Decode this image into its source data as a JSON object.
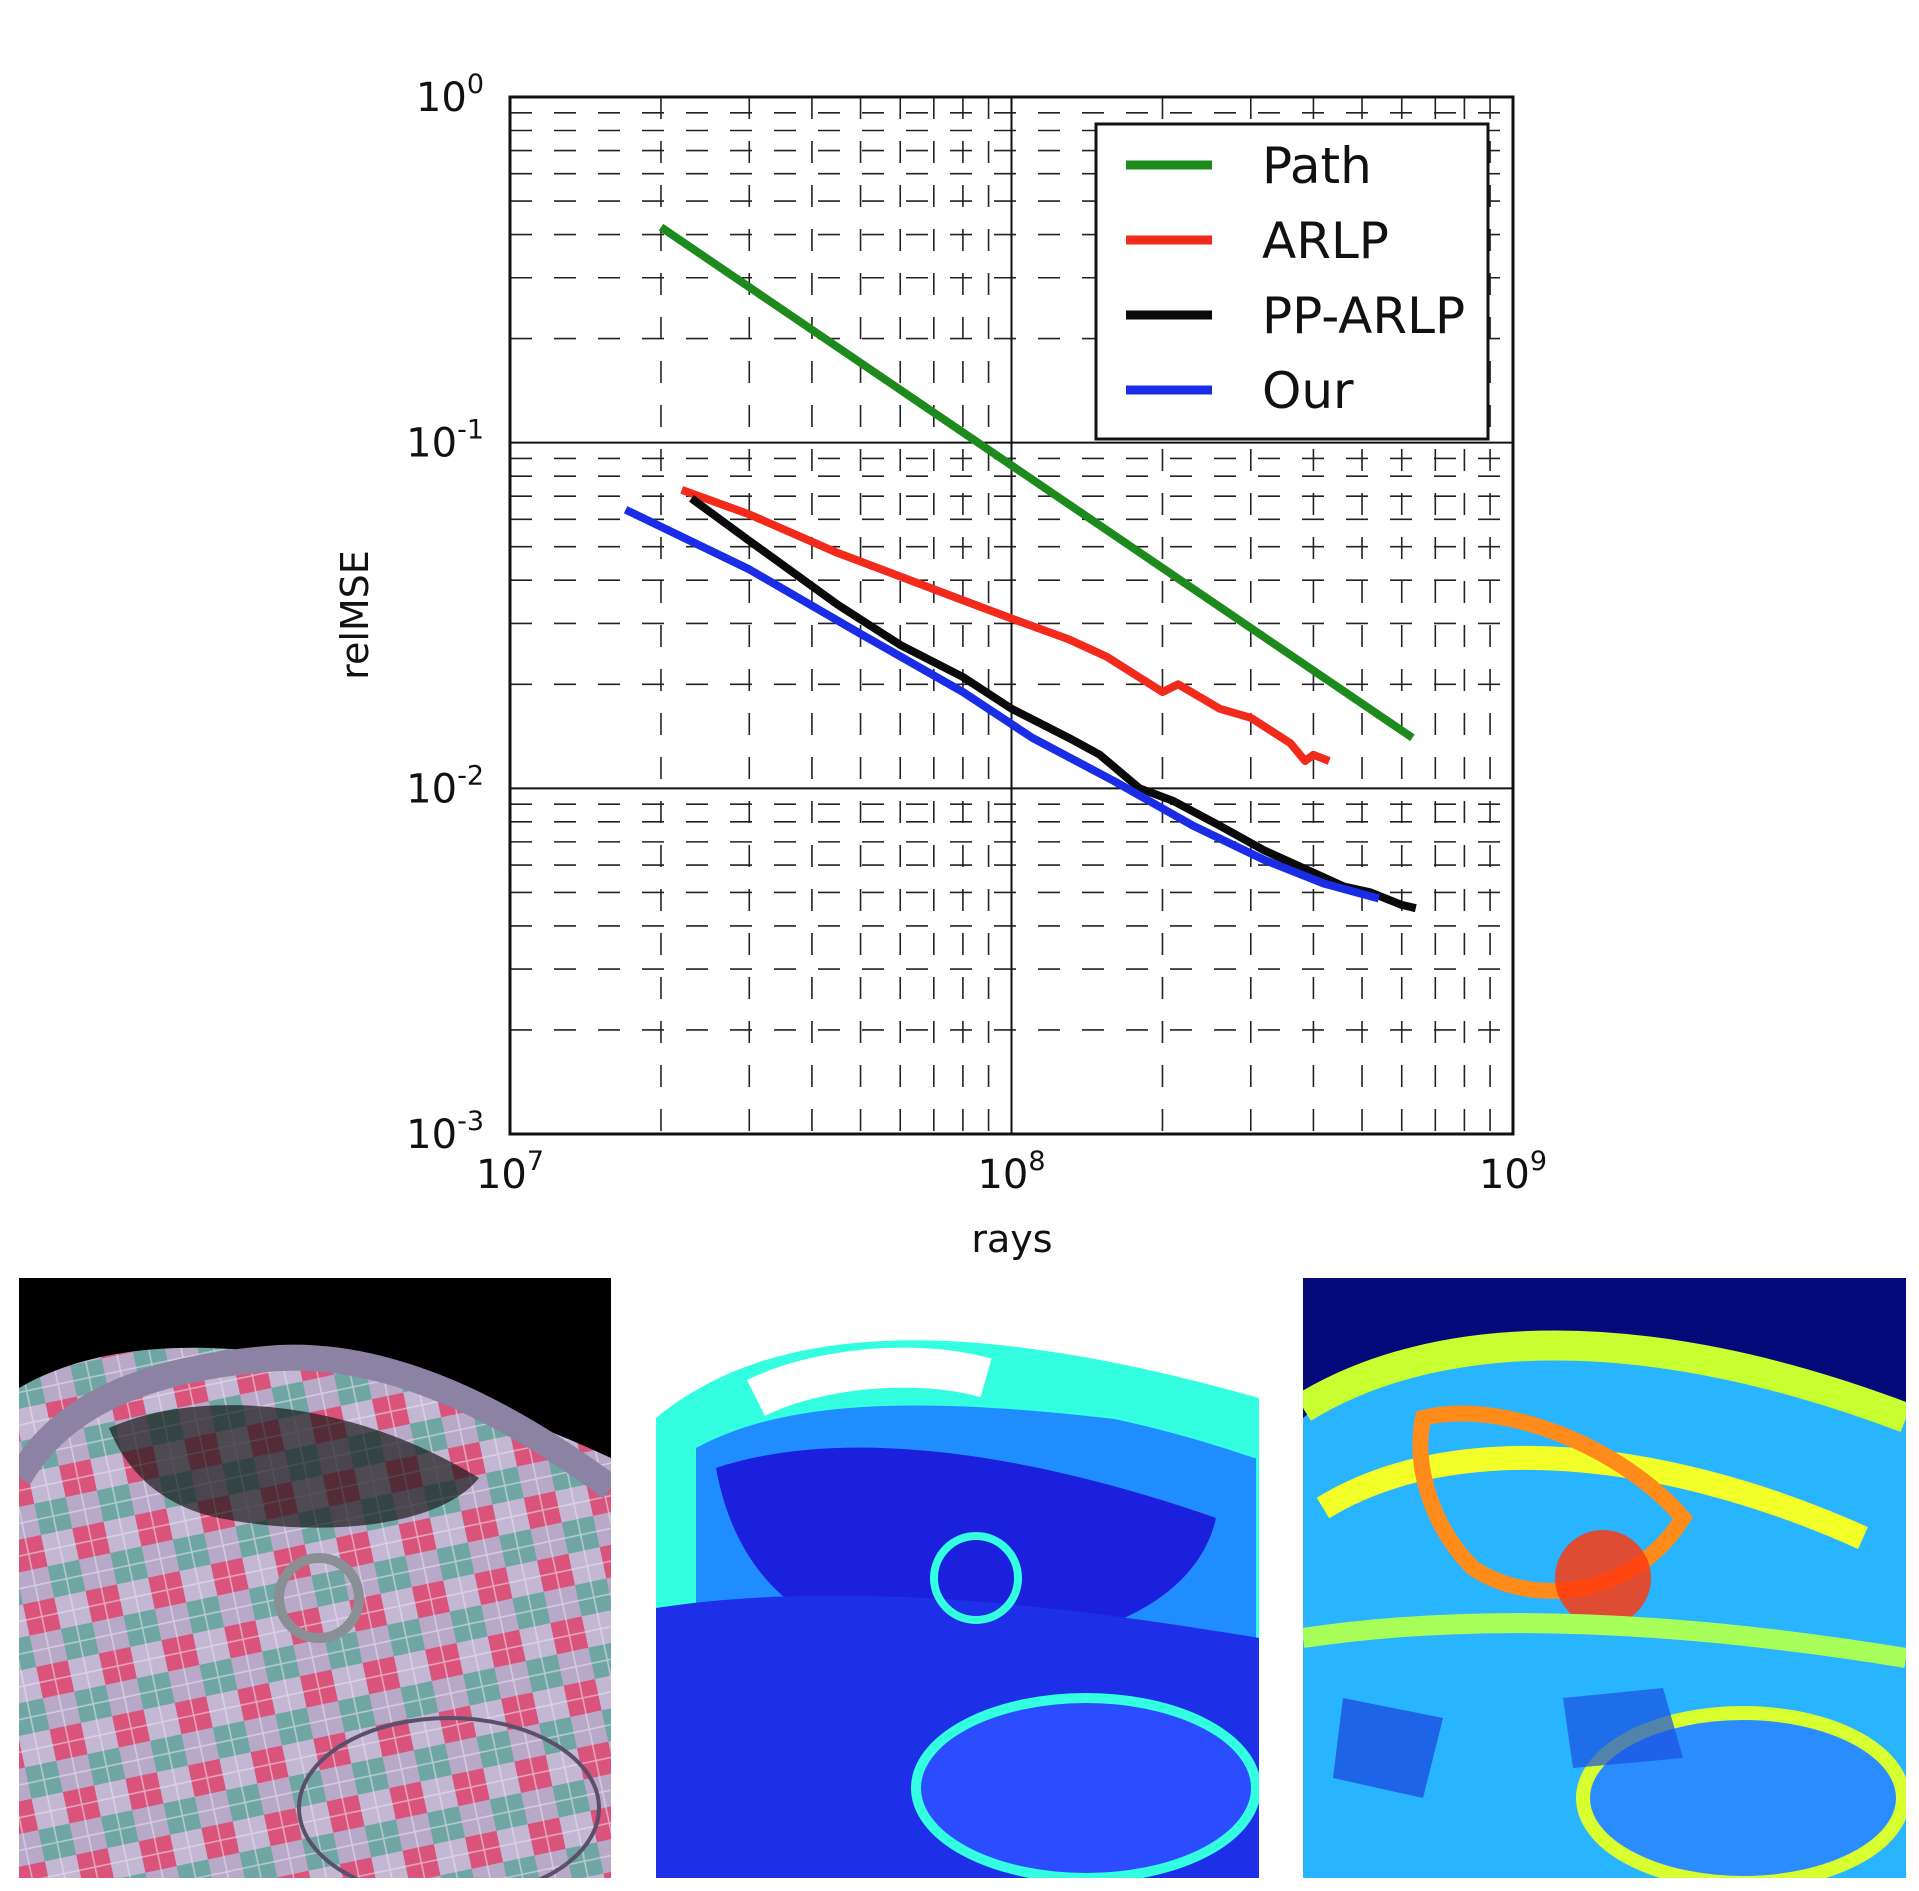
{
  "chart_data": {
    "type": "line",
    "title": "",
    "xlabel": "rays",
    "ylabel": "relMSE",
    "xscale": "log",
    "yscale": "log",
    "xlim": [
      10000000,
      1000000000
    ],
    "ylim": [
      0.001,
      1
    ],
    "x_ticks": [
      {
        "base": "10",
        "exp": "7"
      },
      {
        "base": "10",
        "exp": "8"
      },
      {
        "base": "10",
        "exp": "9"
      }
    ],
    "y_ticks": [
      {
        "base": "10",
        "exp": "0"
      },
      {
        "base": "10",
        "exp": "-1"
      },
      {
        "base": "10",
        "exp": "-2"
      },
      {
        "base": "10",
        "exp": "-3"
      }
    ],
    "grid": true,
    "legend_position": "top-right",
    "series": [
      {
        "name": "Path",
        "color": "#1e8a1e",
        "x": [
          20000000,
          630000000
        ],
        "y": [
          0.42,
          0.014
        ]
      },
      {
        "name": "ARLP",
        "color": "#f22a1c",
        "x": [
          22000000,
          30000000,
          45000000,
          60000000,
          80000000,
          100000000,
          130000000,
          155000000,
          200000000,
          215000000,
          260000000,
          300000000,
          360000000,
          385000000,
          400000000,
          430000000
        ],
        "y": [
          0.073,
          0.062,
          0.048,
          0.041,
          0.035,
          0.031,
          0.027,
          0.024,
          0.019,
          0.02,
          0.017,
          0.016,
          0.0135,
          0.012,
          0.0125,
          0.012
        ]
      },
      {
        "name": "PP-ARLP",
        "color": "#0a0a0a",
        "x": [
          23000000,
          30000000,
          45000000,
          60000000,
          80000000,
          100000000,
          130000000,
          150000000,
          180000000,
          210000000,
          260000000,
          320000000,
          400000000,
          460000000,
          520000000,
          600000000,
          640000000
        ],
        "y": [
          0.069,
          0.052,
          0.034,
          0.026,
          0.021,
          0.017,
          0.014,
          0.0125,
          0.01,
          0.0092,
          0.0078,
          0.0066,
          0.0057,
          0.0052,
          0.005,
          0.0046,
          0.0045
        ]
      },
      {
        "name": "Our",
        "color": "#1a2ce6",
        "x": [
          17000000,
          30000000,
          50000000,
          80000000,
          110000000,
          160000000,
          230000000,
          320000000,
          420000000,
          540000000
        ],
        "y": [
          0.064,
          0.043,
          0.028,
          0.019,
          0.014,
          0.0105,
          0.0078,
          0.0062,
          0.0053,
          0.0048
        ]
      }
    ]
  },
  "panels": [
    {
      "name": "rendered-car-checker"
    },
    {
      "name": "car-error-map-low"
    },
    {
      "name": "car-error-map-high"
    }
  ]
}
